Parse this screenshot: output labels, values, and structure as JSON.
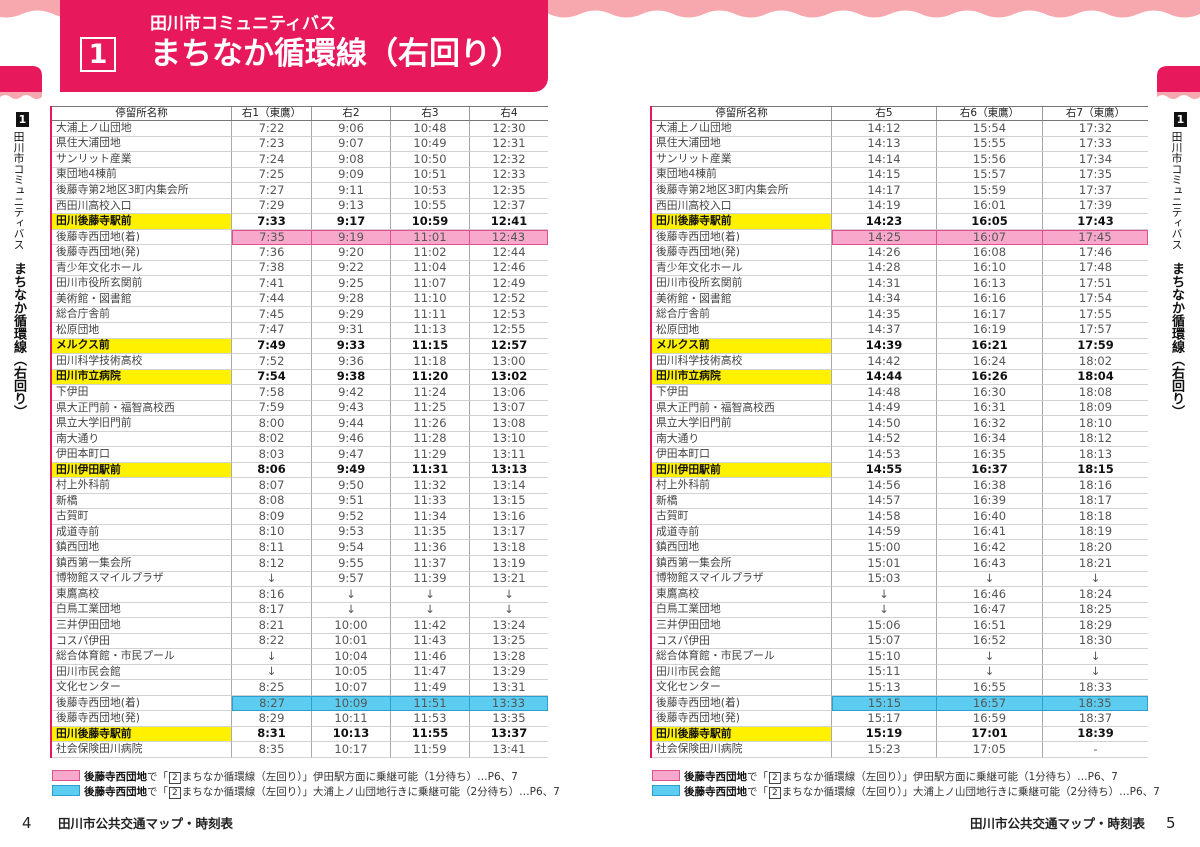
{
  "header": {
    "subtitle": "田川市コミュニティバス",
    "route_number": "1",
    "title": "まちなか循環線（右回り）"
  },
  "sidebar": {
    "route_number": "1",
    "line1": "田川市コミュニティバス",
    "line2": "まちなか循環線（右回り）"
  },
  "colors": {
    "brand_pink": "#e8185d",
    "wave_pink": "#f7a7ae",
    "major_stop_yellow": "#fff100",
    "pink_transfer": "#f7a8cb",
    "pink_transfer_border": "#e0508c",
    "blue_transfer": "#5ccdf0",
    "blue_transfer_border": "#2a9fd0"
  },
  "stops": [
    {
      "name": "大浦上ノ山団地"
    },
    {
      "name": "県住大浦団地"
    },
    {
      "name": "サンリット産業"
    },
    {
      "name": "東団地4棟前"
    },
    {
      "name": "後藤寺第2地区3町内集会所"
    },
    {
      "name": "西田川高校入口"
    },
    {
      "name": "田川後藤寺駅前",
      "major": true
    },
    {
      "name": "後藤寺西団地(着)",
      "transfer_fill": "#f7a8cb",
      "transfer_border": "#e0508c"
    },
    {
      "name": "後藤寺西団地(発)"
    },
    {
      "name": "青少年文化ホール"
    },
    {
      "name": "田川市役所玄関前"
    },
    {
      "name": "美術館・図書館"
    },
    {
      "name": "総合庁舎前"
    },
    {
      "name": "松原団地"
    },
    {
      "name": "メルクス前",
      "major": true
    },
    {
      "name": "田川科学技術高校"
    },
    {
      "name": "田川市立病院",
      "major": true
    },
    {
      "name": "下伊田"
    },
    {
      "name": "県大正門前・福智高校西"
    },
    {
      "name": "県立大学旧門前"
    },
    {
      "name": "南大通り"
    },
    {
      "name": "伊田本町口"
    },
    {
      "name": "田川伊田駅前",
      "major": true
    },
    {
      "name": "村上外科前"
    },
    {
      "name": "新橋"
    },
    {
      "name": "古賀町"
    },
    {
      "name": "成道寺前"
    },
    {
      "name": "鎮西団地"
    },
    {
      "name": "鎮西第一集会所"
    },
    {
      "name": "博物館スマイルプラザ"
    },
    {
      "name": "東鷹高校"
    },
    {
      "name": "白鳥工業団地"
    },
    {
      "name": "三井伊田団地"
    },
    {
      "name": "コスパ伊田"
    },
    {
      "name": "総合体育館・市民プール"
    },
    {
      "name": "田川市民会館"
    },
    {
      "name": "文化センター"
    },
    {
      "name": "後藤寺西団地(着)",
      "transfer_fill": "#5ccdf0",
      "transfer_border": "#2a9fd0"
    },
    {
      "name": "後藤寺西団地(発)"
    },
    {
      "name": "田川後藤寺駅前",
      "major": true
    },
    {
      "name": "社会保険田川病院"
    }
  ],
  "left_table": {
    "columns": [
      "停留所名称",
      "右1（東鷹）",
      "右2",
      "右3",
      "右4"
    ],
    "rows": [
      [
        "7:22",
        "9:06",
        "10:48",
        "12:30"
      ],
      [
        "7:23",
        "9:07",
        "10:49",
        "12:31"
      ],
      [
        "7:24",
        "9:08",
        "10:50",
        "12:32"
      ],
      [
        "7:25",
        "9:09",
        "10:51",
        "12:33"
      ],
      [
        "7:27",
        "9:11",
        "10:53",
        "12:35"
      ],
      [
        "7:29",
        "9:13",
        "10:55",
        "12:37"
      ],
      [
        "7:33",
        "9:17",
        "10:59",
        "12:41"
      ],
      [
        "7:35",
        "9:19",
        "11:01",
        "12:43"
      ],
      [
        "7:36",
        "9:20",
        "11:02",
        "12:44"
      ],
      [
        "7:38",
        "9:22",
        "11:04",
        "12:46"
      ],
      [
        "7:41",
        "9:25",
        "11:07",
        "12:49"
      ],
      [
        "7:44",
        "9:28",
        "11:10",
        "12:52"
      ],
      [
        "7:45",
        "9:29",
        "11:11",
        "12:53"
      ],
      [
        "7:47",
        "9:31",
        "11:13",
        "12:55"
      ],
      [
        "7:49",
        "9:33",
        "11:15",
        "12:57"
      ],
      [
        "7:52",
        "9:36",
        "11:18",
        "13:00"
      ],
      [
        "7:54",
        "9:38",
        "11:20",
        "13:02"
      ],
      [
        "7:58",
        "9:42",
        "11:24",
        "13:06"
      ],
      [
        "7:59",
        "9:43",
        "11:25",
        "13:07"
      ],
      [
        "8:00",
        "9:44",
        "11:26",
        "13:08"
      ],
      [
        "8:02",
        "9:46",
        "11:28",
        "13:10"
      ],
      [
        "8:03",
        "9:47",
        "11:29",
        "13:11"
      ],
      [
        "8:06",
        "9:49",
        "11:31",
        "13:13"
      ],
      [
        "8:07",
        "9:50",
        "11:32",
        "13:14"
      ],
      [
        "8:08",
        "9:51",
        "11:33",
        "13:15"
      ],
      [
        "8:09",
        "9:52",
        "11:34",
        "13:16"
      ],
      [
        "8:10",
        "9:53",
        "11:35",
        "13:17"
      ],
      [
        "8:11",
        "9:54",
        "11:36",
        "13:18"
      ],
      [
        "8:12",
        "9:55",
        "11:37",
        "13:19"
      ],
      [
        "↓",
        "9:57",
        "11:39",
        "13:21"
      ],
      [
        "8:16",
        "↓",
        "↓",
        "↓"
      ],
      [
        "8:17",
        "↓",
        "↓",
        "↓"
      ],
      [
        "8:21",
        "10:00",
        "11:42",
        "13:24"
      ],
      [
        "8:22",
        "10:01",
        "11:43",
        "13:25"
      ],
      [
        "↓",
        "10:04",
        "11:46",
        "13:28"
      ],
      [
        "↓",
        "10:05",
        "11:47",
        "13:29"
      ],
      [
        "8:25",
        "10:07",
        "11:49",
        "13:31"
      ],
      [
        "8:27",
        "10:09",
        "11:51",
        "13:33"
      ],
      [
        "8:29",
        "10:11",
        "11:53",
        "13:35"
      ],
      [
        "8:31",
        "10:13",
        "11:55",
        "13:37"
      ],
      [
        "8:35",
        "10:17",
        "11:59",
        "13:41"
      ]
    ]
  },
  "right_table": {
    "columns": [
      "停留所名称",
      "右5",
      "右6（東鷹）",
      "右7（東鷹）"
    ],
    "rows": [
      [
        "14:12",
        "15:54",
        "17:32"
      ],
      [
        "14:13",
        "15:55",
        "17:33"
      ],
      [
        "14:14",
        "15:56",
        "17:34"
      ],
      [
        "14:15",
        "15:57",
        "17:35"
      ],
      [
        "14:17",
        "15:59",
        "17:37"
      ],
      [
        "14:19",
        "16:01",
        "17:39"
      ],
      [
        "14:23",
        "16:05",
        "17:43"
      ],
      [
        "14:25",
        "16:07",
        "17:45"
      ],
      [
        "14:26",
        "16:08",
        "17:46"
      ],
      [
        "14:28",
        "16:10",
        "17:48"
      ],
      [
        "14:31",
        "16:13",
        "17:51"
      ],
      [
        "14:34",
        "16:16",
        "17:54"
      ],
      [
        "14:35",
        "16:17",
        "17:55"
      ],
      [
        "14:37",
        "16:19",
        "17:57"
      ],
      [
        "14:39",
        "16:21",
        "17:59"
      ],
      [
        "14:42",
        "16:24",
        "18:02"
      ],
      [
        "14:44",
        "16:26",
        "18:04"
      ],
      [
        "14:48",
        "16:30",
        "18:08"
      ],
      [
        "14:49",
        "16:31",
        "18:09"
      ],
      [
        "14:50",
        "16:32",
        "18:10"
      ],
      [
        "14:52",
        "16:34",
        "18:12"
      ],
      [
        "14:53",
        "16:35",
        "18:13"
      ],
      [
        "14:55",
        "16:37",
        "18:15"
      ],
      [
        "14:56",
        "16:38",
        "18:16"
      ],
      [
        "14:57",
        "16:39",
        "18:17"
      ],
      [
        "14:58",
        "16:40",
        "18:18"
      ],
      [
        "14:59",
        "16:41",
        "18:19"
      ],
      [
        "15:00",
        "16:42",
        "18:20"
      ],
      [
        "15:01",
        "16:43",
        "18:21"
      ],
      [
        "15:03",
        "↓",
        "↓"
      ],
      [
        "↓",
        "16:46",
        "18:24"
      ],
      [
        "↓",
        "16:47",
        "18:25"
      ],
      [
        "15:06",
        "16:51",
        "18:29"
      ],
      [
        "15:07",
        "16:52",
        "18:30"
      ],
      [
        "15:10",
        "↓",
        "↓"
      ],
      [
        "15:11",
        "↓",
        "↓"
      ],
      [
        "15:13",
        "16:55",
        "18:33"
      ],
      [
        "15:15",
        "16:57",
        "18:35"
      ],
      [
        "15:17",
        "16:59",
        "18:37"
      ],
      [
        "15:19",
        "17:01",
        "18:39"
      ],
      [
        "15:23",
        "17:05",
        "-"
      ]
    ]
  },
  "legend": [
    {
      "stop": "後藤寺西団地",
      "pre": "で「",
      "route_number": "2",
      "rest": "まちなか循環線（左回り）」伊田駅方面に乗継可能（1分待ち）…P6、7",
      "fill": "#f7a8cb",
      "border": "#e0508c"
    },
    {
      "stop": "後藤寺西団地",
      "pre": "で「",
      "route_number": "2",
      "rest": "まちなか循環線（左回り）」大浦上ノ山団地行きに乗継可能（2分待ち）…P6、7",
      "fill": "#5ccdf0",
      "border": "#2a9fd0"
    }
  ],
  "footer": {
    "left_page_number": "4",
    "right_page_number": "5",
    "title": "田川市公共交通マップ・時刻表"
  }
}
